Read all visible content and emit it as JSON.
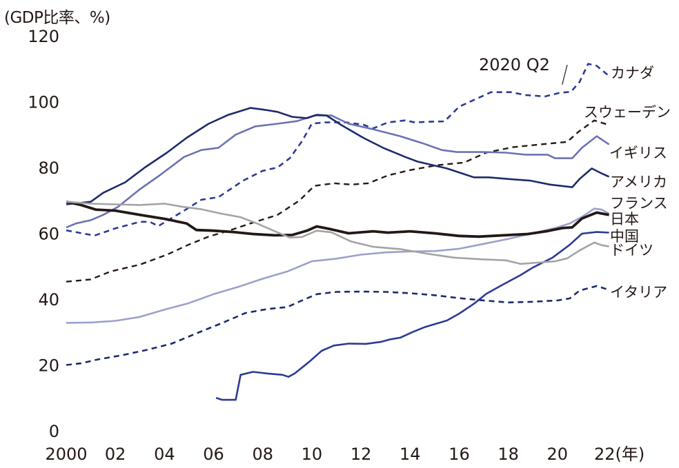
{
  "chart_data": {
    "type": "line",
    "title": "",
    "ylabel": "(GDP比率、%)",
    "xlabel": "(年)",
    "xlim": [
      2000,
      2022.6
    ],
    "ylim": [
      0,
      120
    ],
    "yticks": [
      0,
      20,
      40,
      60,
      80,
      100,
      120
    ],
    "xticks": [
      {
        "value": 2000,
        "label": "2000"
      },
      {
        "value": 2002,
        "label": "02"
      },
      {
        "value": 2004,
        "label": "04"
      },
      {
        "value": 2006,
        "label": "06"
      },
      {
        "value": 2008,
        "label": "08"
      },
      {
        "value": 2010,
        "label": "10"
      },
      {
        "value": 2012,
        "label": "12"
      },
      {
        "value": 2014,
        "label": "14"
      },
      {
        "value": 2016,
        "label": "16"
      },
      {
        "value": 2018,
        "label": "18"
      },
      {
        "value": 2020,
        "label": "20"
      },
      {
        "value": 2022,
        "label": "22(年)"
      }
    ],
    "grid": false,
    "legend": "inline-right",
    "annotations": [
      {
        "text": "2020 Q2",
        "x": 2020.25,
        "y": 106
      }
    ],
    "series": [
      {
        "name": "カナダ",
        "color": "#2b3a92",
        "dash": true,
        "width": 2.6,
        "x": [
          2000,
          2001.15,
          2002,
          2003,
          2003.4,
          2003.75,
          2004.8,
          2005.5,
          2006.2,
          2007.2,
          2008,
          2008.6,
          2009.1,
          2009.6,
          2010,
          2010.5,
          2011.4,
          2012.1,
          2012.5,
          2013.1,
          2013.8,
          2014.2,
          2014.8,
          2015.4,
          2016,
          2016.8,
          2017.3,
          2018.1,
          2018.7,
          2019.5,
          2020.1,
          2020.55,
          2020.9,
          2021.25,
          2021.6,
          2022.1
        ],
        "y": [
          60.9,
          59.3,
          61.5,
          63.5,
          63.5,
          62.2,
          66.9,
          70.2,
          71.0,
          76.0,
          79.0,
          80.0,
          82.8,
          88.0,
          93.3,
          93.7,
          93.7,
          93.0,
          91.9,
          93.7,
          94.3,
          93.7,
          93.9,
          94.0,
          98.5,
          101.2,
          102.9,
          102.9,
          102.0,
          101.6,
          102.7,
          103.0,
          106.0,
          111.5,
          110.9,
          107.8
        ]
      },
      {
        "name": "スウェーデン",
        "color": "#231815",
        "dash": true,
        "width": 2.4,
        "x": [
          2000,
          2001,
          2001.8,
          2003,
          2004.1,
          2005,
          2005.8,
          2006.7,
          2007.5,
          2008.6,
          2009.5,
          2010.1,
          2010.9,
          2011.6,
          2012.3,
          2013.1,
          2014,
          2015.1,
          2016.2,
          2017.1,
          2018.2,
          2019.3,
          2020.4,
          2020.85,
          2021.5,
          2022.1
        ],
        "y": [
          45.3,
          46.0,
          48.4,
          50.5,
          53.5,
          56.6,
          59.0,
          61.0,
          63.0,
          65.6,
          70.0,
          74.4,
          75.2,
          74.8,
          75.2,
          77.6,
          79.2,
          80.7,
          81.5,
          84.5,
          86.2,
          87.0,
          87.8,
          90.8,
          94.3,
          92.9
        ]
      },
      {
        "name": "イギリス",
        "color": "#6b72b2",
        "dash": false,
        "width": 2.6,
        "x": [
          2000,
          2000.4,
          2001,
          2001.5,
          2002.1,
          2003,
          2003.8,
          2004.8,
          2005.5,
          2006.2,
          2006.9,
          2007.7,
          2008.6,
          2009.4,
          2010.1,
          2010.8,
          2011.5,
          2012.5,
          2013.6,
          2014.5,
          2015.3,
          2015.9,
          2017,
          2017.9,
          2018.7,
          2019.6,
          2019.9,
          2020.6,
          2021,
          2021.6,
          2022.1
        ],
        "y": [
          61.8,
          63.0,
          64.0,
          65.6,
          68.0,
          73.4,
          77.6,
          83.2,
          85.3,
          86.0,
          90.0,
          92.5,
          93.3,
          94.1,
          95.8,
          95.8,
          93.3,
          91.6,
          89.5,
          87.4,
          85.3,
          84.7,
          84.7,
          84.5,
          83.9,
          83.9,
          82.8,
          82.8,
          86.0,
          89.5,
          87.0
        ]
      },
      {
        "name": "アメリカ",
        "color": "#1c2a6b",
        "dash": false,
        "width": 2.6,
        "x": [
          2000,
          2001,
          2001.5,
          2002.4,
          2003.2,
          2004.1,
          2004.9,
          2005.8,
          2006.6,
          2007.5,
          2008.1,
          2008.6,
          2009.2,
          2009.8,
          2010.2,
          2010.6,
          2011.2,
          2012.1,
          2012.9,
          2013.8,
          2014.3,
          2015.5,
          2016.6,
          2017.2,
          2018,
          2018.9,
          2019.7,
          2020.6,
          2020.9,
          2021.4,
          2021.8,
          2022.1
        ],
        "y": [
          68.8,
          69.6,
          72.3,
          75.5,
          80.0,
          84.5,
          89.0,
          93.3,
          96.0,
          98.1,
          97.5,
          96.9,
          95.4,
          95.0,
          96.0,
          95.8,
          92.9,
          89.0,
          86.0,
          83.2,
          81.8,
          79.7,
          77.0,
          77.0,
          76.5,
          76.0,
          74.8,
          74.0,
          76.5,
          79.7,
          78.2,
          77.2
        ]
      },
      {
        "name": "フランス",
        "color": "#9ba0cb",
        "dash": false,
        "width": 2.6,
        "x": [
          2000,
          2001,
          2002,
          2003,
          2004,
          2005,
          2006,
          2007,
          2008,
          2009,
          2010,
          2011,
          2012,
          2013,
          2014,
          2015,
          2016,
          2017,
          2018,
          2019,
          2020,
          2020.5,
          2021,
          2021.5,
          2021.8,
          2022.1
        ],
        "y": [
          32.8,
          32.9,
          33.4,
          34.6,
          36.8,
          38.8,
          41.5,
          43.7,
          46.2,
          48.4,
          51.5,
          52.3,
          53.5,
          54.2,
          54.5,
          54.6,
          55.3,
          56.8,
          58.3,
          60.0,
          61.8,
          63.0,
          65.0,
          67.5,
          67.2,
          66.0
        ]
      },
      {
        "name": "日本",
        "color": "#231815",
        "dash": false,
        "width": 3.8,
        "x": [
          2000,
          2000.6,
          2001.2,
          2002,
          2003,
          2004,
          2004.9,
          2005.3,
          2006,
          2006.8,
          2007.6,
          2008.5,
          2009.2,
          2009.8,
          2010.2,
          2010.8,
          2011.5,
          2012.5,
          2013.1,
          2014,
          2015,
          2016,
          2016.8,
          2017.8,
          2018.8,
          2019.6,
          2020.2,
          2020.6,
          2021,
          2021.6,
          2022.1
        ],
        "y": [
          69.6,
          68.6,
          67.2,
          66.9,
          65.6,
          64.4,
          63.0,
          61.0,
          60.8,
          60.4,
          59.8,
          59.4,
          59.5,
          60.8,
          62.1,
          61.2,
          60.0,
          60.6,
          60.2,
          60.6,
          60.0,
          59.2,
          59.0,
          59.4,
          59.8,
          60.7,
          61.6,
          61.8,
          64.5,
          66.3,
          65.6
        ]
      },
      {
        "name": "中国",
        "color": "#2b3a92",
        "dash": false,
        "width": 2.6,
        "x": [
          2006.1,
          2006.35,
          2006.9,
          2007.1,
          2007.6,
          2008.2,
          2008.8,
          2009.05,
          2009.3,
          2009.9,
          2010.4,
          2010.9,
          2011.5,
          2012.2,
          2012.8,
          2013.2,
          2013.6,
          2014.1,
          2014.6,
          2015.1,
          2015.5,
          2016,
          2016.6,
          2017.1,
          2017.8,
          2018.5,
          2019,
          2019.8,
          2020.5,
          2021,
          2021.6,
          2022.1
        ],
        "y": [
          10.0,
          9.4,
          9.4,
          17.0,
          17.9,
          17.4,
          17.0,
          16.4,
          17.4,
          21.0,
          24.3,
          25.9,
          26.5,
          26.4,
          27.0,
          27.8,
          28.3,
          30.0,
          31.5,
          32.6,
          33.5,
          35.6,
          38.6,
          41.6,
          44.5,
          47.3,
          49.6,
          52.6,
          56.5,
          59.9,
          60.4,
          60.2
        ]
      },
      {
        "name": "ドイツ",
        "color": "#a3a3a3",
        "dash": false,
        "width": 2.6,
        "x": [
          2000,
          2001,
          2002,
          2003,
          2004,
          2004.7,
          2005.5,
          2006.3,
          2007.1,
          2007.8,
          2008.5,
          2009.1,
          2009.6,
          2010.2,
          2010.8,
          2011.6,
          2012.5,
          2013.6,
          2014.7,
          2015.8,
          2016.9,
          2017.9,
          2018.5,
          2019.2,
          2019.9,
          2020.4,
          2020.9,
          2021.5,
          2021.8,
          2022.1
        ],
        "y": [
          69.6,
          69.0,
          68.8,
          68.6,
          69.0,
          68.1,
          67.3,
          66.0,
          64.9,
          62.9,
          60.6,
          58.7,
          58.9,
          60.8,
          60.3,
          57.5,
          55.9,
          55.2,
          53.8,
          52.6,
          52.1,
          51.8,
          50.7,
          51.1,
          51.5,
          52.4,
          54.8,
          57.2,
          56.4,
          56.0
        ]
      },
      {
        "name": "イタリア",
        "color": "#1c2a6b",
        "dash": true,
        "width": 2.6,
        "x": [
          2000,
          2000.6,
          2001.3,
          2002.3,
          2003.3,
          2004.3,
          2005.3,
          2006.3,
          2007.3,
          2008.2,
          2009,
          2009.6,
          2010.2,
          2011,
          2012,
          2013,
          2014,
          2015,
          2016,
          2017,
          2018,
          2019,
          2020,
          2020.5,
          2020.9,
          2021.6,
          2022.1
        ],
        "y": [
          20.0,
          20.5,
          21.7,
          23.0,
          24.6,
          26.5,
          29.6,
          32.6,
          35.8,
          37.0,
          37.6,
          39.6,
          41.5,
          42.2,
          42.3,
          42.2,
          41.8,
          41.2,
          40.3,
          39.6,
          39.0,
          39.2,
          39.6,
          40.2,
          42.6,
          44.0,
          42.8
        ]
      }
    ],
    "series_labels": [
      {
        "name": "カナダ"
      },
      {
        "name": "スウェーデン"
      },
      {
        "name": "イギリス"
      },
      {
        "name": "アメリカ"
      },
      {
        "name": "フランス"
      },
      {
        "name": "日本"
      },
      {
        "name": "中国"
      },
      {
        "name": "ドイツ"
      },
      {
        "name": "イタリア"
      }
    ]
  }
}
